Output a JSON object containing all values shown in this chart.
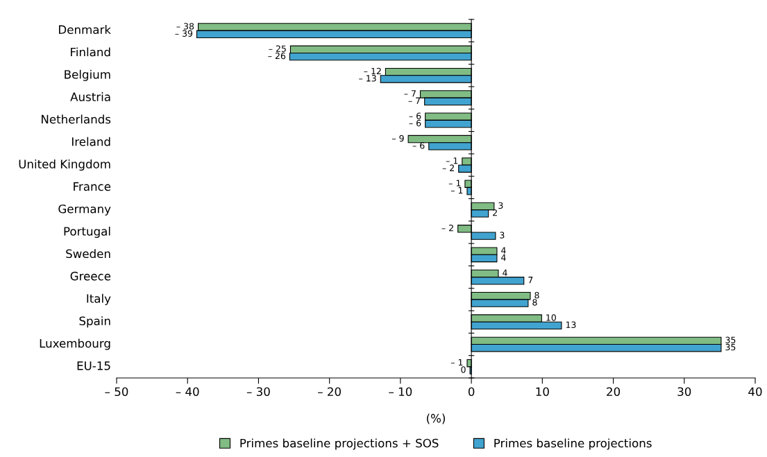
{
  "chart_data": {
    "type": "bar",
    "orientation": "horizontal",
    "xlabel": "(%)",
    "categories": [
      "Denmark",
      "Finland",
      "Belgium",
      "Austria",
      "Netherlands",
      "Ireland",
      "United Kingdom",
      "France",
      "Germany",
      "Portugal",
      "Sweden",
      "Greece",
      "Italy",
      "Spain",
      "Luxembourg",
      "EU-15"
    ],
    "series": [
      {
        "name": "Primes baseline projections + SOS",
        "color": "#80bc84",
        "values": [
          -38.5,
          -25.5,
          -12.1,
          -7.2,
          -6.5,
          -8.9,
          -1.3,
          -0.9,
          3.2,
          -1.9,
          3.6,
          3.8,
          8.3,
          9.9,
          35.2,
          -0.6
        ],
        "value_labels": [
          "– 38",
          "– 25",
          "– 12",
          "– 7",
          "– 6",
          "– 9",
          "– 1",
          "– 1",
          "3",
          "– 2",
          "4",
          "4",
          "8",
          "10",
          "35",
          "– 1"
        ]
      },
      {
        "name": "Primes baseline projections",
        "color": "#41a3cf",
        "values": [
          -38.7,
          -25.6,
          -12.8,
          -6.6,
          -6.5,
          -6.0,
          -1.8,
          -0.6,
          2.4,
          3.4,
          3.6,
          7.4,
          8.0,
          12.7,
          35.2,
          -0.2
        ],
        "value_labels": [
          "– 39",
          "– 26",
          "– 13",
          "– 7",
          "– 6",
          "– 6",
          "– 2",
          "– 1",
          "2",
          "3",
          "4",
          "7",
          "8",
          "13",
          "35",
          "0"
        ]
      }
    ],
    "xlim": [
      -50,
      40
    ],
    "xticks": [
      {
        "value": -50,
        "label": "– 50"
      },
      {
        "value": -40,
        "label": "– 40"
      },
      {
        "value": -30,
        "label": "– 30"
      },
      {
        "value": -20,
        "label": "– 20"
      },
      {
        "value": -10,
        "label": "– 10"
      },
      0,
      10,
      20,
      30,
      40
    ],
    "legend": "bottom"
  }
}
